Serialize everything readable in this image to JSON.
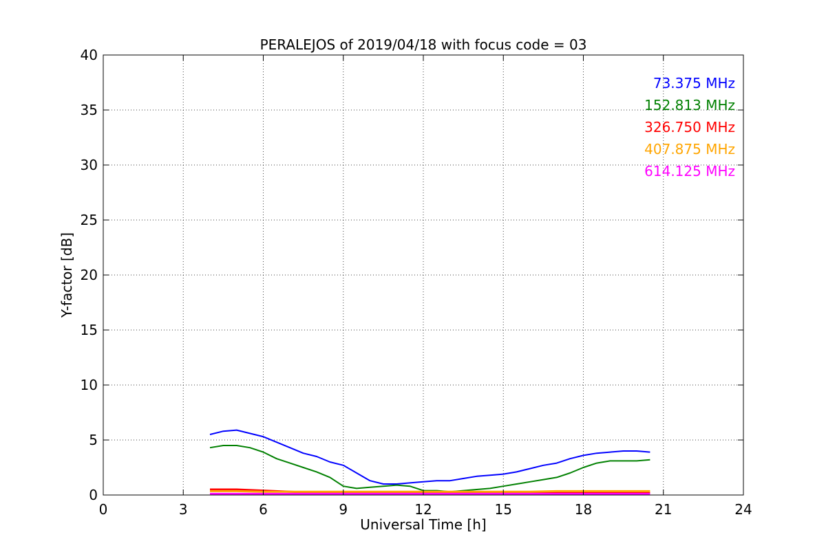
{
  "chart_data": {
    "type": "line",
    "title": "PERALEJOS of 2019/04/18 with focus code = 03",
    "xlabel": "Universal Time [h]",
    "ylabel": "Y-factor [dB]",
    "xlim": [
      0,
      24
    ],
    "ylim": [
      0,
      40
    ],
    "xticks": [
      0,
      3,
      6,
      9,
      12,
      15,
      18,
      21,
      24
    ],
    "yticks": [
      0,
      5,
      10,
      15,
      20,
      25,
      30,
      35,
      40
    ],
    "grid": true,
    "legend_position": "top-right",
    "series": [
      {
        "name": "73.375 MHz",
        "color": "#0000ff",
        "x": [
          4.0,
          4.5,
          5.0,
          5.5,
          6.0,
          6.5,
          7.0,
          7.5,
          8.0,
          8.5,
          9.0,
          9.5,
          10.0,
          10.5,
          11.0,
          11.5,
          12.0,
          12.5,
          13.0,
          13.5,
          14.0,
          14.5,
          15.0,
          15.5,
          16.0,
          16.5,
          17.0,
          17.5,
          18.0,
          18.5,
          19.0,
          19.5,
          20.0,
          20.5
        ],
        "y": [
          5.5,
          5.8,
          5.9,
          5.6,
          5.3,
          4.8,
          4.3,
          3.8,
          3.5,
          3.0,
          2.7,
          2.0,
          1.3,
          1.0,
          1.0,
          1.1,
          1.2,
          1.3,
          1.3,
          1.5,
          1.7,
          1.8,
          1.9,
          2.1,
          2.4,
          2.7,
          2.9,
          3.3,
          3.6,
          3.8,
          3.9,
          4.0,
          4.0,
          3.9
        ]
      },
      {
        "name": "152.813 MHz",
        "color": "#008000",
        "x": [
          4.0,
          4.5,
          5.0,
          5.5,
          6.0,
          6.5,
          7.0,
          7.5,
          8.0,
          8.5,
          9.0,
          9.5,
          10.0,
          10.5,
          11.0,
          11.5,
          12.0,
          12.5,
          13.0,
          13.5,
          14.0,
          14.5,
          15.0,
          15.5,
          16.0,
          16.5,
          17.0,
          17.5,
          18.0,
          18.5,
          19.0,
          19.5,
          20.0,
          20.5
        ],
        "y": [
          4.3,
          4.5,
          4.5,
          4.3,
          3.9,
          3.3,
          2.9,
          2.5,
          2.1,
          1.6,
          0.8,
          0.6,
          0.7,
          0.8,
          0.9,
          0.8,
          0.4,
          0.4,
          0.3,
          0.4,
          0.5,
          0.6,
          0.8,
          1.0,
          1.2,
          1.4,
          1.6,
          2.0,
          2.5,
          2.9,
          3.1,
          3.1,
          3.1,
          3.2
        ]
      },
      {
        "name": "326.750 MHz",
        "color": "#ff0000",
        "x": [
          4.0,
          5.0,
          6.0,
          7.0,
          8.0,
          9.0,
          10.0,
          11.0,
          12.0,
          13.0,
          14.0,
          15.0,
          16.0,
          17.0,
          18.0,
          19.0,
          20.0,
          20.5
        ],
        "y": [
          0.5,
          0.5,
          0.4,
          0.3,
          0.2,
          0.15,
          0.15,
          0.15,
          0.15,
          0.15,
          0.15,
          0.15,
          0.15,
          0.2,
          0.2,
          0.2,
          0.2,
          0.2
        ]
      },
      {
        "name": "407.875 MHz",
        "color": "#ffa500",
        "x": [
          4.0,
          5.0,
          6.0,
          7.0,
          8.0,
          9.0,
          10.0,
          11.0,
          12.0,
          13.0,
          14.0,
          15.0,
          16.0,
          17.0,
          18.0,
          19.0,
          20.0,
          20.5
        ],
        "y": [
          0.35,
          0.35,
          0.3,
          0.3,
          0.3,
          0.3,
          0.3,
          0.3,
          0.3,
          0.3,
          0.3,
          0.3,
          0.3,
          0.35,
          0.35,
          0.35,
          0.35,
          0.35
        ]
      },
      {
        "name": "614.125 MHz",
        "color": "#ff00ff",
        "x": [
          4.0,
          5.0,
          6.0,
          7.0,
          8.0,
          9.0,
          10.0,
          11.0,
          12.0,
          13.0,
          14.0,
          15.0,
          16.0,
          17.0,
          18.0,
          19.0,
          20.0,
          20.5
        ],
        "y": [
          0.1,
          0.1,
          0.1,
          0.1,
          0.1,
          0.1,
          0.1,
          0.1,
          0.1,
          0.1,
          0.1,
          0.1,
          0.1,
          0.1,
          0.1,
          0.1,
          0.1,
          0.1
        ]
      }
    ]
  }
}
